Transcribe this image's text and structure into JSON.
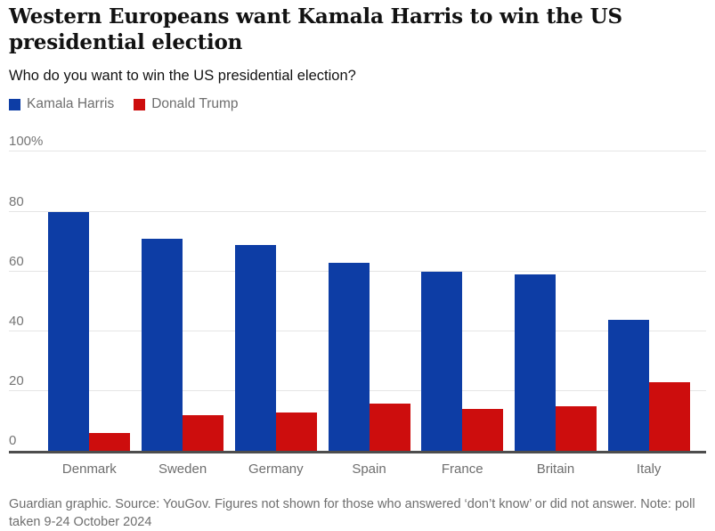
{
  "header": {
    "title": "Western Europeans want Kamala Harris to win the US presidential election",
    "subtitle": "Who do you want to win the US presidential election?"
  },
  "legend": {
    "items": [
      {
        "label": "Kamala Harris",
        "color": "#0d3da5"
      },
      {
        "label": "Donald Trump",
        "color": "#cd0d0d"
      }
    ]
  },
  "chart_data": {
    "type": "bar",
    "categories": [
      "Denmark",
      "Sweden",
      "Germany",
      "Spain",
      "France",
      "Britain",
      "Italy"
    ],
    "series": [
      {
        "name": "Kamala Harris",
        "color": "#0d3da5",
        "values": [
          80,
          71,
          69,
          63,
          60,
          59,
          44
        ]
      },
      {
        "name": "Donald Trump",
        "color": "#cd0d0d",
        "values": [
          6,
          12,
          13,
          16,
          14,
          15,
          23
        ]
      }
    ],
    "title": "Western Europeans want Kamala Harris to win the US presidential election",
    "xlabel": "",
    "ylabel": "",
    "ylim": [
      0,
      100
    ],
    "yticks": [
      0,
      20,
      40,
      60,
      80,
      100
    ],
    "ytick_labels": [
      "0",
      "20",
      "40",
      "60",
      "80",
      "100%"
    ],
    "grid": true,
    "legend_position": "top",
    "colors": {
      "gridline": "#e5e5e5",
      "axis_line": "#4d4d4d",
      "tick_text": "#757575",
      "category_text": "#6e6e6e"
    }
  },
  "footer": {
    "note": "Guardian graphic. Source: YouGov. Figures not shown for those who answered ‘don’t know’ or did not answer. Note: poll taken 9-24 October 2024"
  }
}
